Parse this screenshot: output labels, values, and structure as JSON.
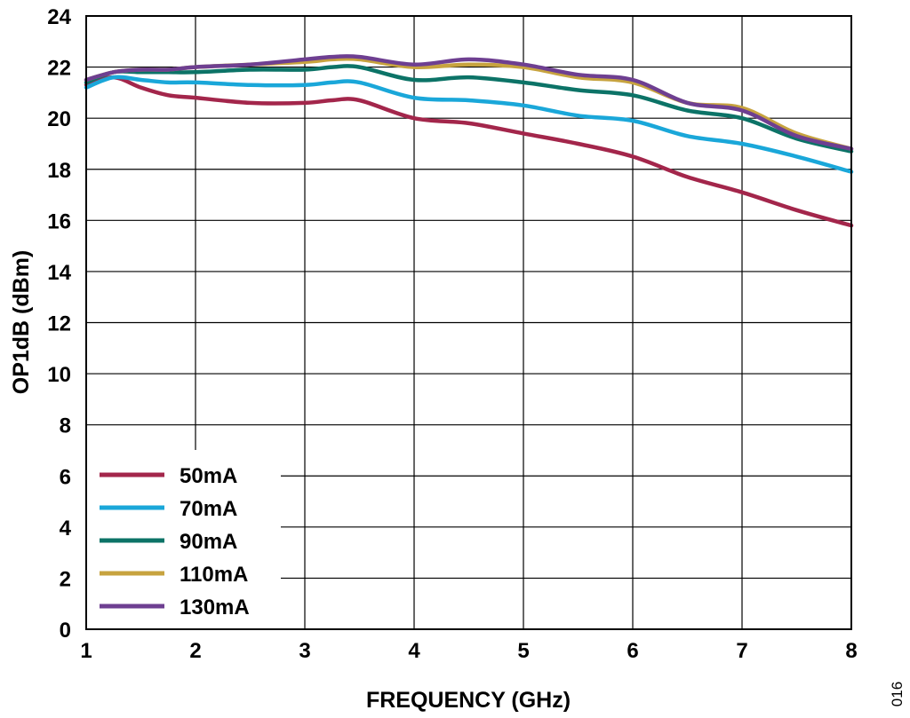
{
  "chart_data": {
    "type": "line",
    "title": "",
    "xlabel": "FREQUENCY (GHz)",
    "ylabel": "OP1dB (dBm)",
    "xlim": [
      1,
      8
    ],
    "ylim": [
      0,
      24
    ],
    "x_ticks": [
      "1",
      "2",
      "3",
      "4",
      "5",
      "6",
      "7",
      "8"
    ],
    "y_ticks": [
      "0",
      "2",
      "4",
      "6",
      "8",
      "10",
      "12",
      "14",
      "16",
      "18",
      "20",
      "22",
      "24"
    ],
    "grid": true,
    "legend_position": "bottom-left",
    "figure_id": "016",
    "series": [
      {
        "name": "50mA",
        "color": "#a3264b",
        "x": [
          1,
          1.25,
          1.5,
          1.75,
          2,
          2.5,
          3,
          3.25,
          3.5,
          4,
          4.5,
          5,
          5.5,
          6,
          6.5,
          7,
          7.5,
          8
        ],
        "y": [
          21.3,
          21.6,
          21.2,
          20.9,
          20.8,
          20.6,
          20.6,
          20.7,
          20.7,
          20.0,
          19.8,
          19.4,
          19.0,
          18.5,
          17.7,
          17.1,
          16.4,
          15.8
        ]
      },
      {
        "name": "70mA",
        "color": "#1aa7d9",
        "x": [
          1,
          1.25,
          1.5,
          1.75,
          2,
          2.5,
          3,
          3.25,
          3.5,
          4,
          4.5,
          5,
          5.5,
          6,
          6.5,
          7,
          7.5,
          8
        ],
        "y": [
          21.2,
          21.6,
          21.5,
          21.4,
          21.4,
          21.3,
          21.3,
          21.4,
          21.4,
          20.8,
          20.7,
          20.5,
          20.1,
          19.9,
          19.3,
          19.0,
          18.5,
          17.9
        ]
      },
      {
        "name": "90mA",
        "color": "#0c7367",
        "x": [
          1,
          1.25,
          1.5,
          1.75,
          2,
          2.5,
          3,
          3.25,
          3.5,
          4,
          4.5,
          5,
          5.5,
          6,
          6.5,
          7,
          7.5,
          8
        ],
        "y": [
          21.4,
          21.8,
          21.8,
          21.8,
          21.8,
          21.9,
          21.9,
          22.0,
          22.0,
          21.5,
          21.6,
          21.4,
          21.1,
          20.9,
          20.3,
          20.0,
          19.2,
          18.7
        ]
      },
      {
        "name": "110mA",
        "color": "#c7a33f",
        "x": [
          1,
          1.25,
          1.5,
          1.75,
          2,
          2.5,
          3,
          3.25,
          3.5,
          4,
          4.5,
          5,
          5.5,
          6,
          6.5,
          7,
          7.5,
          8
        ],
        "y": [
          21.5,
          21.8,
          21.9,
          21.9,
          22.0,
          22.1,
          22.2,
          22.3,
          22.3,
          22.0,
          22.1,
          22.0,
          21.6,
          21.4,
          20.6,
          20.4,
          19.4,
          18.8
        ]
      },
      {
        "name": "130mA",
        "color": "#6e3f91",
        "x": [
          1,
          1.25,
          1.5,
          1.75,
          2,
          2.5,
          3,
          3.25,
          3.5,
          4,
          4.5,
          5,
          5.5,
          6,
          6.5,
          7,
          7.5,
          8
        ],
        "y": [
          21.5,
          21.8,
          21.9,
          21.9,
          22.0,
          22.1,
          22.3,
          22.4,
          22.4,
          22.1,
          22.3,
          22.1,
          21.7,
          21.5,
          20.6,
          20.3,
          19.3,
          18.8
        ]
      }
    ]
  }
}
